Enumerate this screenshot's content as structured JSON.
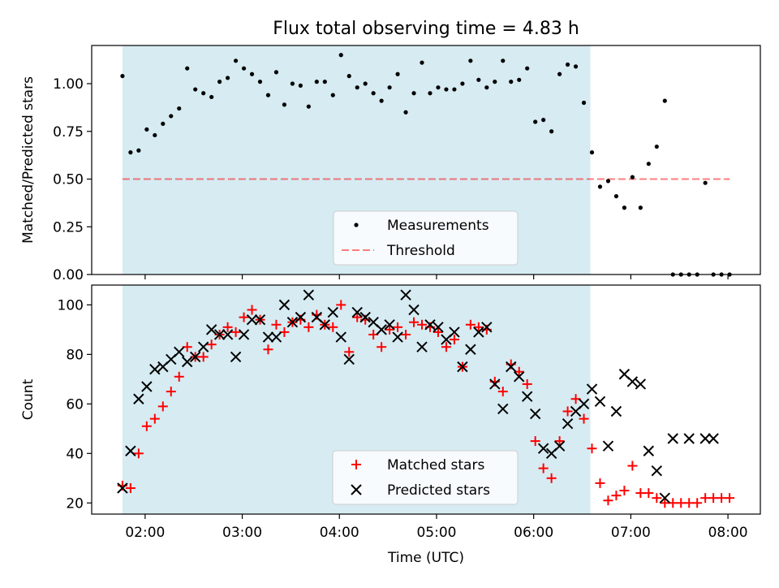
{
  "chart_data": [
    {
      "type": "scatter",
      "title": "Flux total observing time = 4.83 h",
      "xlabel": "",
      "ylabel": "Matched/Predicted stars",
      "xlim": [
        "01:27",
        "08:20"
      ],
      "ylim": [
        0,
        1.2
      ],
      "y_ticks": [
        "0.00",
        "0.25",
        "0.50",
        "0.75",
        "1.00"
      ],
      "y_tick_values": [
        0,
        0.25,
        0.5,
        0.75,
        1.0
      ],
      "x_ticks": [
        "02:00",
        "03:00",
        "04:00",
        "05:00",
        "06:00",
        "07:00",
        "08:00"
      ],
      "shaded_span": [
        "01:46",
        "06:35"
      ],
      "threshold": 0.5,
      "legend_position": "lower-center",
      "legend": [
        "Measurements",
        "Threshold"
      ],
      "series": [
        {
          "name": "Measurements",
          "x": [
            "01:46",
            "01:51",
            "01:56",
            "02:01",
            "02:06",
            "02:11",
            "02:16",
            "02:21",
            "02:26",
            "02:31",
            "02:36",
            "02:41",
            "02:46",
            "02:51",
            "02:56",
            "03:01",
            "03:06",
            "03:11",
            "03:16",
            "03:21",
            "03:26",
            "03:31",
            "03:36",
            "03:41",
            "03:46",
            "03:51",
            "03:56",
            "04:01",
            "04:06",
            "04:11",
            "04:16",
            "04:21",
            "04:26",
            "04:31",
            "04:36",
            "04:41",
            "04:46",
            "04:51",
            "04:56",
            "05:01",
            "05:06",
            "05:11",
            "05:16",
            "05:21",
            "05:26",
            "05:31",
            "05:36",
            "05:41",
            "05:46",
            "05:51",
            "05:56",
            "06:01",
            "06:06",
            "06:11",
            "06:16",
            "06:21",
            "06:26",
            "06:31",
            "06:36",
            "06:41",
            "06:46",
            "06:51",
            "06:56",
            "07:01",
            "07:06",
            "07:11",
            "07:16",
            "07:21",
            "07:26",
            "07:31",
            "07:36",
            "07:41",
            "07:46",
            "07:51",
            "07:56",
            "08:01"
          ],
          "y": [
            1.04,
            0.64,
            0.65,
            0.76,
            0.73,
            0.79,
            0.83,
            0.87,
            1.08,
            0.97,
            0.95,
            0.93,
            1.01,
            1.03,
            1.12,
            1.08,
            1.05,
            1.01,
            0.94,
            1.06,
            0.89,
            1.0,
            0.99,
            0.88,
            1.01,
            1.01,
            0.94,
            1.15,
            1.04,
            0.98,
            1.0,
            0.95,
            0.91,
            0.98,
            1.05,
            0.85,
            0.95,
            1.11,
            0.95,
            0.98,
            0.97,
            0.97,
            1.0,
            1.12,
            1.02,
            0.98,
            1.01,
            1.12,
            1.01,
            1.02,
            1.08,
            0.8,
            0.81,
            0.75,
            1.05,
            1.1,
            1.09,
            0.9,
            0.64,
            0.46,
            0.49,
            0.41,
            0.35,
            0.51,
            0.35,
            0.58,
            0.67,
            0.91,
            0.0,
            0.0,
            0.0,
            0.0,
            0.48,
            0.0,
            0.0,
            0.0
          ]
        }
      ]
    },
    {
      "type": "scatter",
      "title": "",
      "xlabel": "Time (UTC)",
      "ylabel": "Count",
      "xlim": [
        "01:27",
        "08:20"
      ],
      "ylim": [
        15.5,
        108
      ],
      "y_ticks": [
        "20",
        "40",
        "60",
        "80",
        "100"
      ],
      "y_tick_values": [
        20,
        40,
        60,
        80,
        100
      ],
      "x_ticks": [
        "02:00",
        "03:00",
        "04:00",
        "05:00",
        "06:00",
        "07:00",
        "08:00"
      ],
      "shaded_span": [
        "01:46",
        "06:35"
      ],
      "legend_position": "lower-center",
      "legend": [
        "Matched stars",
        "Predicted stars"
      ],
      "series": [
        {
          "name": "Matched stars",
          "x": [
            "01:46",
            "01:51",
            "01:56",
            "02:01",
            "02:06",
            "02:11",
            "02:16",
            "02:21",
            "02:26",
            "02:31",
            "02:36",
            "02:41",
            "02:46",
            "02:51",
            "02:56",
            "03:01",
            "03:06",
            "03:11",
            "03:16",
            "03:21",
            "03:26",
            "03:31",
            "03:36",
            "03:41",
            "03:46",
            "03:51",
            "03:56",
            "04:01",
            "04:06",
            "04:11",
            "04:16",
            "04:21",
            "04:26",
            "04:31",
            "04:36",
            "04:41",
            "04:46",
            "04:51",
            "04:56",
            "05:01",
            "05:06",
            "05:11",
            "05:16",
            "05:21",
            "05:26",
            "05:31",
            "05:36",
            "05:41",
            "05:46",
            "05:51",
            "05:56",
            "06:01",
            "06:06",
            "06:11",
            "06:16",
            "06:21",
            "06:26",
            "06:31",
            "06:36",
            "06:41",
            "06:46",
            "06:51",
            "06:56",
            "07:01",
            "07:06",
            "07:11",
            "07:16",
            "07:21",
            "07:26",
            "07:31",
            "07:36",
            "07:41",
            "07:46",
            "07:51",
            "07:56",
            "08:01"
          ],
          "y": [
            27,
            26,
            40,
            51,
            54,
            59,
            65,
            71,
            83,
            79,
            79,
            84,
            88,
            91,
            89,
            95,
            98,
            94,
            82,
            92,
            89,
            93,
            94,
            91,
            96,
            92,
            91,
            100,
            81,
            95,
            94,
            88,
            83,
            90,
            91,
            88,
            93,
            92,
            91,
            89,
            83,
            86,
            75,
            92,
            91,
            90,
            69,
            65,
            76,
            73,
            68,
            45,
            34,
            30,
            45,
            57,
            62,
            54,
            42,
            28,
            21,
            23,
            25,
            35,
            24,
            24,
            22,
            20,
            20,
            20,
            20,
            20,
            22,
            22,
            22,
            22
          ]
        },
        {
          "name": "Predicted stars",
          "x": [
            "01:46",
            "01:51",
            "01:56",
            "02:01",
            "02:06",
            "02:11",
            "02:16",
            "02:21",
            "02:26",
            "02:31",
            "02:36",
            "02:41",
            "02:46",
            "02:51",
            "02:56",
            "03:01",
            "03:06",
            "03:11",
            "03:16",
            "03:21",
            "03:26",
            "03:31",
            "03:36",
            "03:41",
            "03:46",
            "03:51",
            "03:56",
            "04:01",
            "04:06",
            "04:11",
            "04:16",
            "04:21",
            "04:26",
            "04:31",
            "04:36",
            "04:41",
            "04:46",
            "04:51",
            "04:56",
            "05:01",
            "05:06",
            "05:11",
            "05:16",
            "05:21",
            "05:26",
            "05:31",
            "05:36",
            "05:41",
            "05:46",
            "05:51",
            "05:56",
            "06:01",
            "06:06",
            "06:11",
            "06:16",
            "06:21",
            "06:26",
            "06:31",
            "06:36",
            "06:41",
            "06:46",
            "06:51",
            "06:56",
            "07:01",
            "07:06",
            "07:11",
            "07:16",
            "07:21",
            "07:26",
            "07:36",
            "07:46",
            "07:51"
          ],
          "y": [
            26,
            41,
            62,
            67,
            74,
            75,
            78,
            81,
            77,
            79,
            83,
            90,
            88,
            88,
            79,
            88,
            94,
            94,
            87,
            87,
            100,
            93,
            95,
            104,
            95,
            92,
            97,
            87,
            78,
            97,
            95,
            93,
            90,
            92,
            87,
            104,
            98,
            83,
            92,
            91,
            86,
            89,
            75,
            82,
            89,
            91,
            68,
            58,
            75,
            71,
            63,
            56,
            42,
            40,
            43,
            52,
            57,
            60,
            66,
            61,
            43,
            57,
            72,
            69,
            68,
            41,
            33,
            22,
            46,
            46,
            46,
            46
          ]
        }
      ]
    }
  ]
}
